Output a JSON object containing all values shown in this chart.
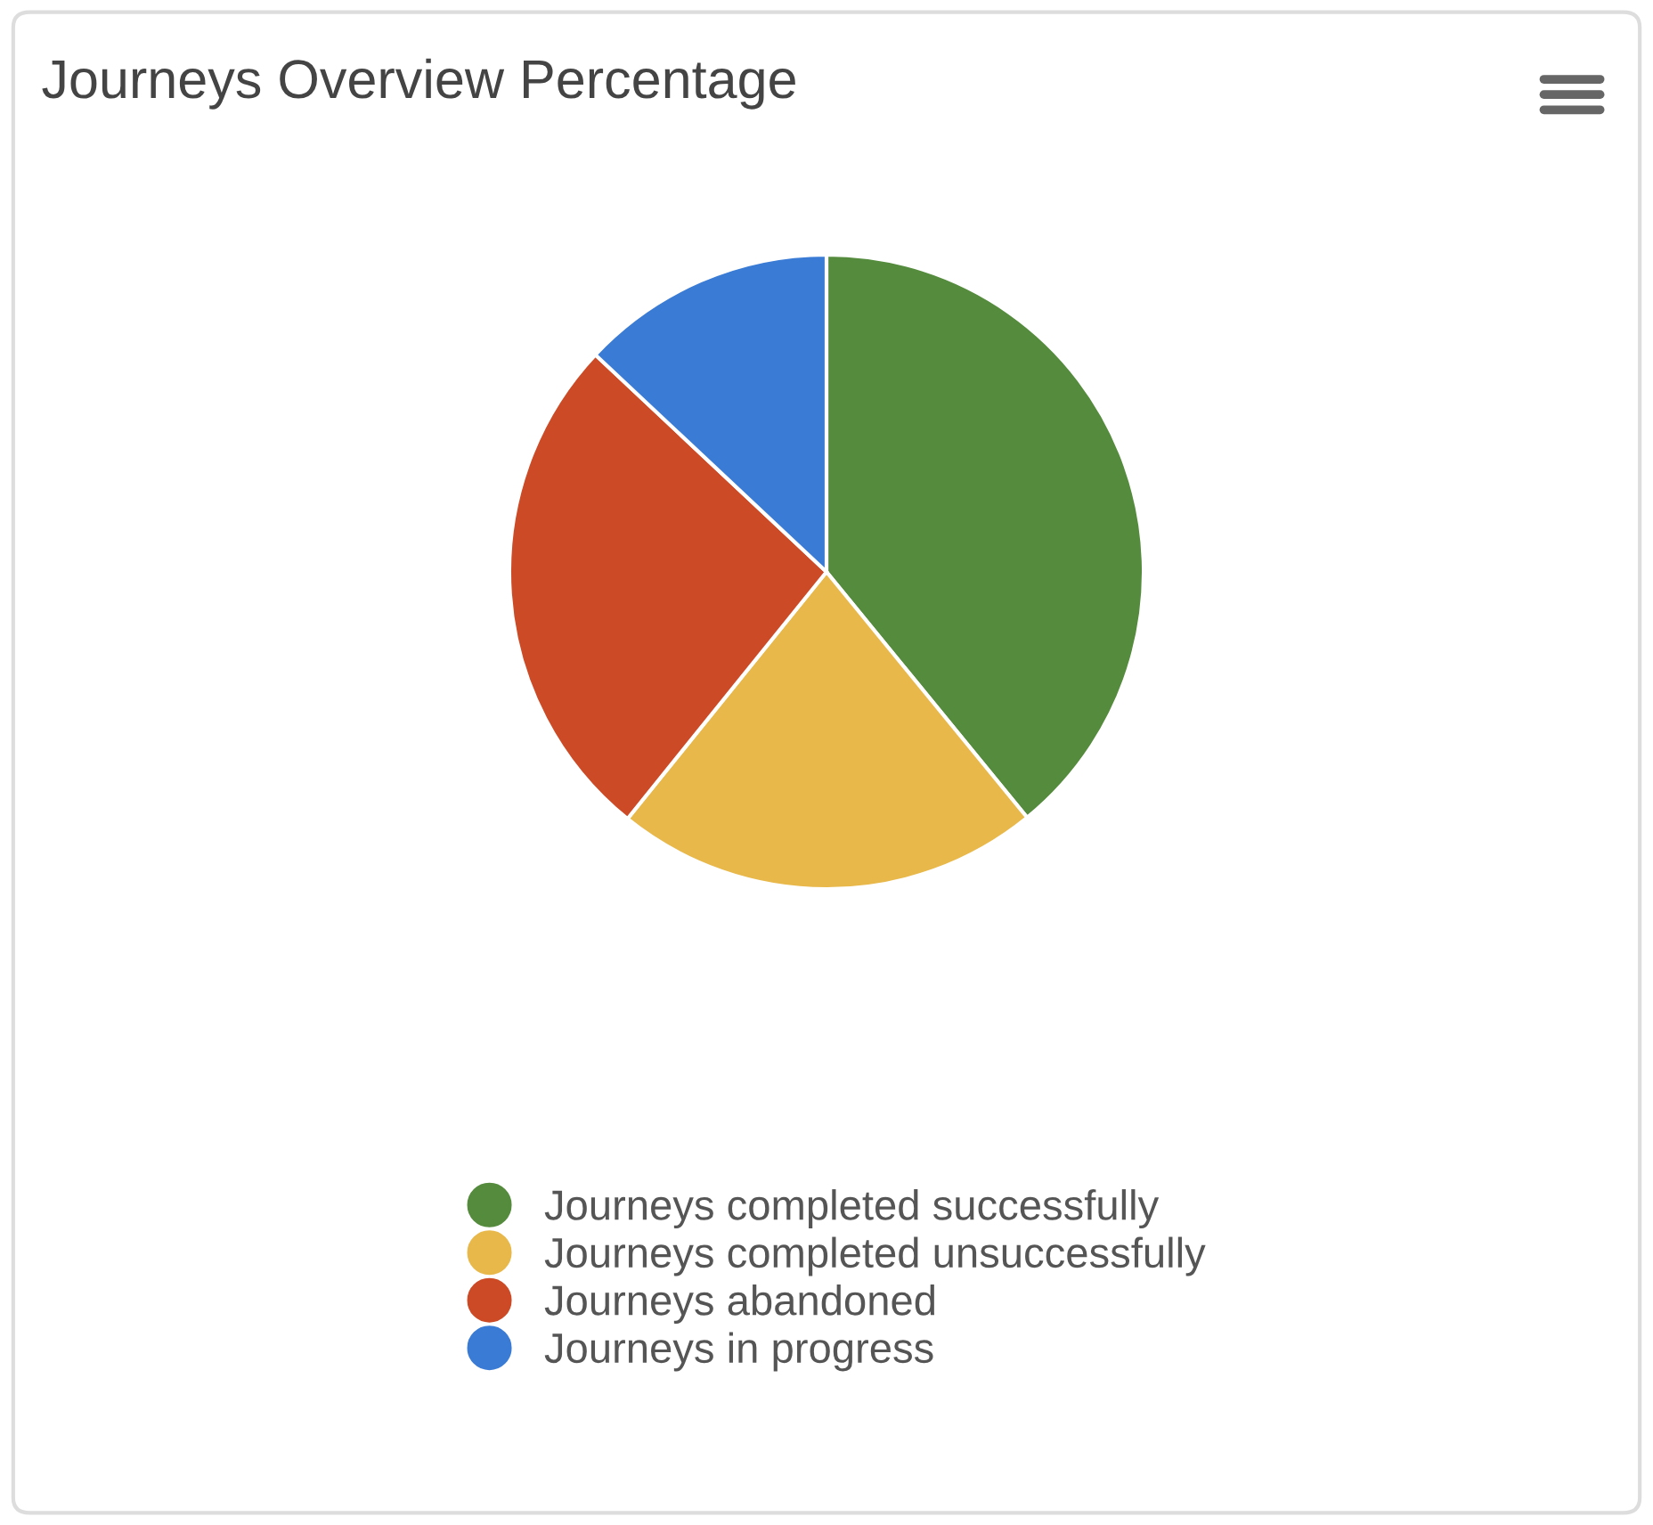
{
  "chart_data": {
    "type": "pie",
    "title": "Journeys Overview Percentage",
    "categories": [
      "Journeys completed successfully",
      "Journeys completed unsuccessfully",
      "Journeys abandoned",
      "Journeys in progress"
    ],
    "values": [
      39.1,
      21.7,
      26.2,
      13.0
    ],
    "colors": [
      "#548b3c",
      "#e8b84a",
      "#cc4a25",
      "#3a7bd5"
    ],
    "legend": "bottom"
  }
}
